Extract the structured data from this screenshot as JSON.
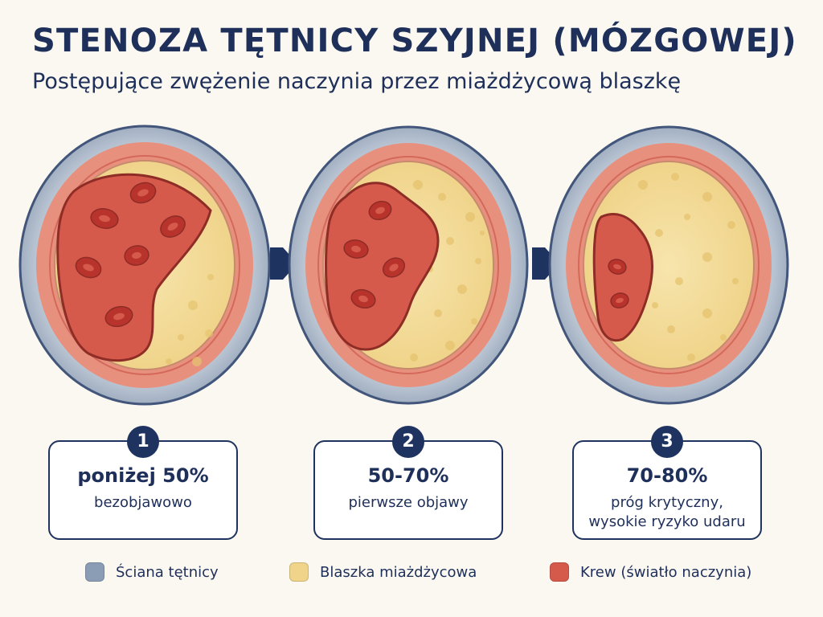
{
  "header": {
    "title": "STENOZA TĘTNICY SZYJNEJ (MÓZGOWEJ)",
    "subtitle": "Postępujące zwężenie naczynia przez miażdżycową blaszkę"
  },
  "stages": [
    {
      "number": "1",
      "value": "poniżej 50%",
      "description": "bezobjawowo"
    },
    {
      "number": "2",
      "value": "50-70%",
      "description": "pierwsze objawy"
    },
    {
      "number": "3",
      "value": "70-80%",
      "description": "próg krytyczny, wysokie ryzyko udaru"
    }
  ],
  "legend": [
    {
      "label": "Ściana tętnicy",
      "color": "#8a9db5"
    },
    {
      "label": "Blaszka miażdżycowa",
      "color": "#f0d48a"
    },
    {
      "label": "Krew (światło naczynia)",
      "color": "#d65a4c"
    }
  ],
  "colors": {
    "wall": "#a9b6c6",
    "tunica": "#e58a78",
    "plaque": "#f2dc9a",
    "blood": "#d65a4c",
    "cell": "#b8332c",
    "accent": "#1f3360"
  }
}
